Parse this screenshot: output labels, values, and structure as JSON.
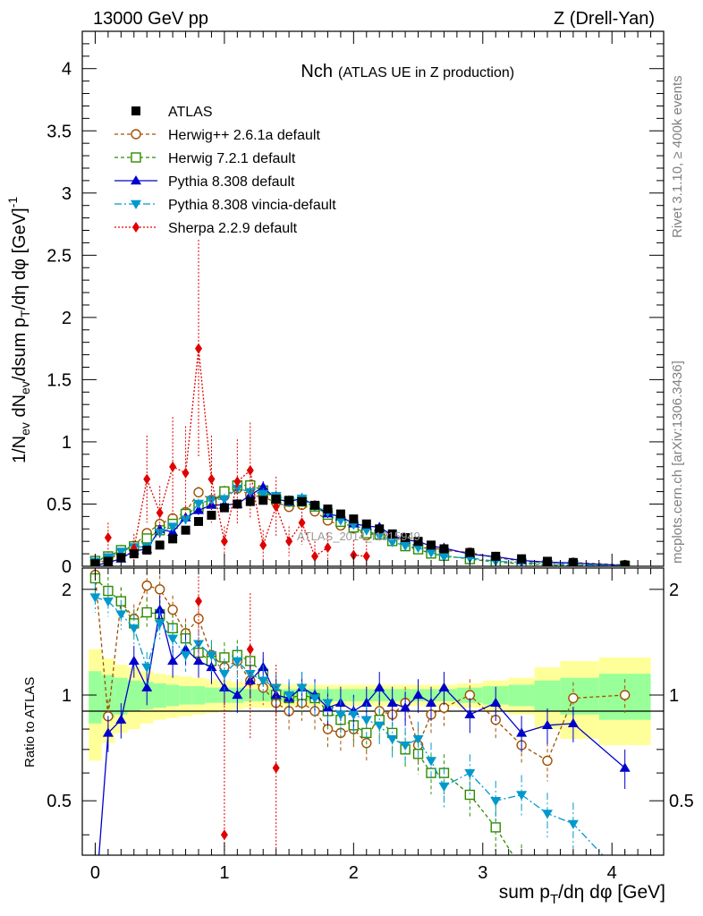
{
  "header": {
    "energy_label": "13000 GeV pp",
    "process_label": "Z (Drell-Yan)"
  },
  "side_labels": {
    "rivet": "Rivet 3.1.10, ≥ 400k events",
    "source": "mcplots.cern.ch [arXiv:1306.3436]"
  },
  "chart_data": {
    "type": "scatter",
    "title_main": "Nch",
    "title_sub": "(ATLAS UE in Z production)",
    "watermark": "ATLAS_2014_I1315949",
    "xlabel": "sum p_T/dη dφ [GeV]",
    "ylabel_main": "1/N_ev dN_ev/dsum p_T/dη dφ [GeV]^-1",
    "ylabel_ratio": "Ratio to ATLAS",
    "xlim": [
      -0.1,
      4.4
    ],
    "ylim_main": [
      0,
      4.3
    ],
    "ylim_ratio": [
      0.35,
      2.3
    ],
    "x_ticks": [
      "0",
      "1",
      "2",
      "3",
      "4"
    ],
    "y_ticks_main": [
      "0",
      "0.5",
      "1",
      "1.5",
      "2",
      "2.5",
      "3",
      "3.5",
      "4"
    ],
    "y_ticks_ratio": [
      "0.5",
      "1",
      "2"
    ],
    "x": [
      0.0,
      0.1,
      0.2,
      0.3,
      0.4,
      0.5,
      0.6,
      0.7,
      0.8,
      0.9,
      1.0,
      1.1,
      1.2,
      1.3,
      1.4,
      1.5,
      1.6,
      1.7,
      1.8,
      1.9,
      2.0,
      2.1,
      2.2,
      2.3,
      2.4,
      2.5,
      2.6,
      2.7,
      2.9,
      3.1,
      3.3,
      3.5,
      3.7,
      4.1
    ],
    "legend": [
      "ATLAS",
      "Herwig++ 2.6.1a default",
      "Herwig 7.2.1 default",
      "Pythia 8.308 default",
      "Pythia 8.308 vincia-default",
      "Sherpa 2.2.9 default"
    ],
    "data": {
      "name": "ATLAS",
      "values": [
        0.02,
        0.04,
        0.07,
        0.1,
        0.13,
        0.17,
        0.22,
        0.29,
        0.36,
        0.41,
        0.47,
        0.5,
        0.52,
        0.53,
        0.54,
        0.53,
        0.52,
        0.49,
        0.46,
        0.42,
        0.38,
        0.34,
        0.3,
        0.26,
        0.23,
        0.2,
        0.17,
        0.14,
        0.11,
        0.08,
        0.06,
        0.04,
        0.03,
        0.01
      ]
    },
    "band_outer": [
      0.35,
      0.27,
      0.22,
      0.2,
      0.17,
      0.15,
      0.14,
      0.13,
      0.12,
      0.11,
      0.1,
      0.09,
      0.08,
      0.08,
      0.08,
      0.07,
      0.07,
      0.07,
      0.07,
      0.07,
      0.07,
      0.07,
      0.07,
      0.07,
      0.07,
      0.07,
      0.07,
      0.07,
      0.08,
      0.1,
      0.12,
      0.2,
      0.25,
      0.28
    ],
    "band_inner": [
      0.17,
      0.14,
      0.12,
      0.1,
      0.09,
      0.08,
      0.07,
      0.06,
      0.06,
      0.05,
      0.05,
      0.05,
      0.04,
      0.04,
      0.04,
      0.04,
      0.04,
      0.04,
      0.04,
      0.04,
      0.04,
      0.04,
      0.04,
      0.04,
      0.04,
      0.04,
      0.04,
      0.04,
      0.05,
      0.06,
      0.07,
      0.1,
      0.12,
      0.15
    ],
    "series": [
      {
        "name": "Herwig++ 2.6.1a default",
        "color": "#a05000",
        "ratio": [
          2.2,
          0.87,
          1.85,
          1.65,
          2.05,
          2.0,
          1.75,
          1.5,
          1.65,
          1.3,
          1.2,
          1.25,
          1.1,
          1.05,
          0.95,
          0.9,
          0.95,
          0.9,
          0.8,
          0.78,
          0.8,
          0.73,
          0.9,
          0.88,
          0.95,
          0.72,
          0.88,
          0.92,
          1.0,
          0.85,
          0.72,
          0.65,
          0.98,
          1.0
        ]
      },
      {
        "name": "Herwig 7.2.1 default",
        "color": "#2e8b00",
        "ratio": [
          2.15,
          1.98,
          1.85,
          1.6,
          1.72,
          1.7,
          1.55,
          1.45,
          1.32,
          1.25,
          1.28,
          1.3,
          1.25,
          1.15,
          1.0,
          0.98,
          1.0,
          0.98,
          0.9,
          0.85,
          0.82,
          0.78,
          0.85,
          0.78,
          0.7,
          0.68,
          0.6,
          0.6,
          0.52,
          0.42,
          0.32,
          0.28,
          0.25,
          0.22
        ]
      },
      {
        "name": "Pythia 8.308 default",
        "color": "#0000cc",
        "ratio": [
          0.25,
          0.78,
          0.85,
          1.25,
          1.05,
          1.75,
          1.25,
          1.35,
          1.25,
          1.2,
          1.05,
          1.0,
          1.1,
          1.2,
          1.0,
          0.98,
          1.05,
          1.0,
          0.92,
          0.95,
          0.9,
          0.95,
          1.05,
          0.95,
          0.92,
          1.0,
          0.95,
          1.05,
          0.88,
          0.95,
          0.78,
          0.82,
          0.83,
          0.62
        ]
      },
      {
        "name": "Pythia 8.308 vincia-default",
        "color": "#0099cc",
        "ratio": [
          1.9,
          1.85,
          1.7,
          1.55,
          1.2,
          1.6,
          1.45,
          1.3,
          1.4,
          1.3,
          1.15,
          1.25,
          1.15,
          1.1,
          1.05,
          1.0,
          1.05,
          0.98,
          0.95,
          0.88,
          0.88,
          0.85,
          0.82,
          0.75,
          0.72,
          0.75,
          0.65,
          0.55,
          0.6,
          0.5,
          0.52,
          0.46,
          0.43,
          0.3
        ]
      },
      {
        "name": "Sherpa 2.2.9 default",
        "color": "#e00000",
        "ratio": [
          null,
          null,
          null,
          null,
          null,
          null,
          null,
          null,
          1.85,
          null,
          0.4,
          null,
          1.35,
          null,
          0.62,
          null,
          null,
          null,
          null,
          null,
          null,
          null,
          null,
          null,
          null,
          null,
          null,
          null,
          null,
          null,
          null,
          null,
          null,
          null
        ],
        "main": [
          null,
          0.23,
          null,
          0.14,
          0.7,
          0.43,
          0.8,
          0.75,
          1.75,
          0.7,
          0.2,
          0.68,
          0.77,
          0.17,
          0.48,
          0.2,
          0.35,
          0.08,
          0.15,
          null,
          0.09,
          0.08,
          null,
          null,
          null,
          null,
          null,
          null,
          null,
          null,
          null,
          null,
          null,
          null
        ]
      }
    ]
  }
}
